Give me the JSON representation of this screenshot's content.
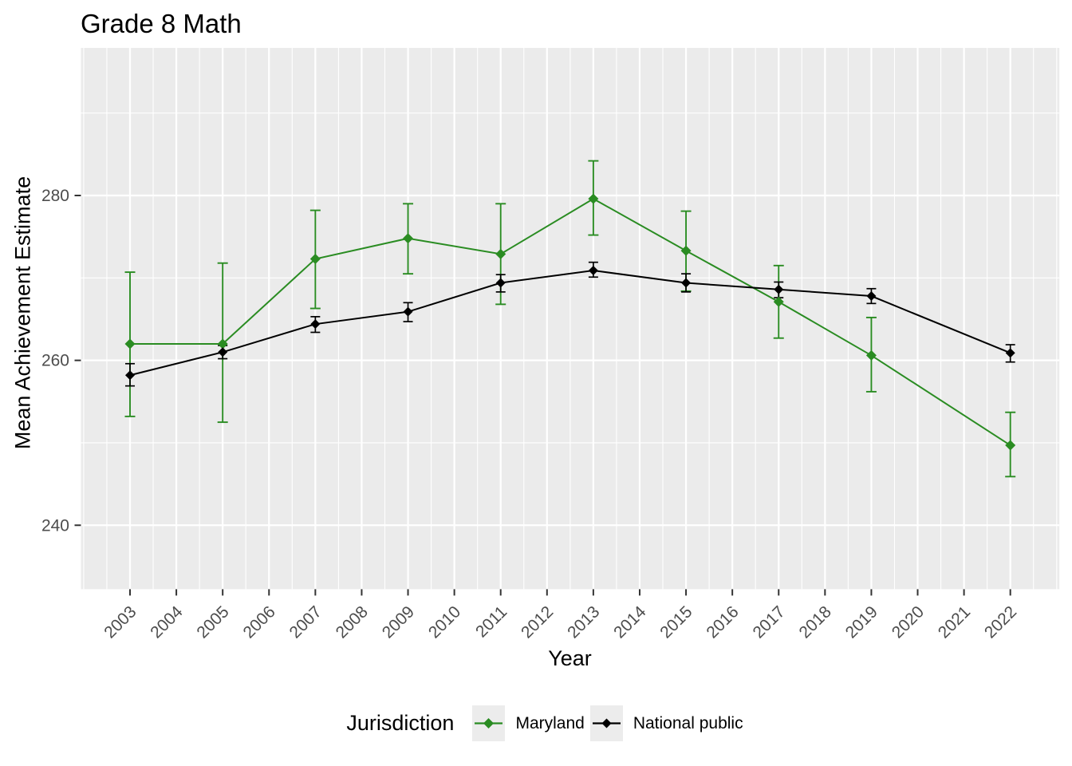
{
  "title": "Grade 8 Math",
  "colors": {
    "maryland": "#2A8C22",
    "national_public": "#000000",
    "panel_bg": "#EBEBEB",
    "grid": "#FFFFFF",
    "axis_text": "#4D4D4D",
    "tick_mark": "#333333",
    "legend_key_bg": "#ECECEC"
  },
  "chart_data": {
    "type": "line",
    "title": "Grade 8 Math",
    "xlabel": "Year",
    "ylabel": "Mean Achievement Estimate",
    "x_ticks": [
      2003,
      2004,
      2005,
      2006,
      2007,
      2008,
      2009,
      2010,
      2011,
      2012,
      2013,
      2014,
      2015,
      2016,
      2017,
      2018,
      2019,
      2020,
      2021,
      2022
    ],
    "y_ticks": [
      240,
      260,
      280
    ],
    "y_minor_ticks": [
      250,
      270,
      290
    ],
    "xlim": [
      2001.9,
      2023.1
    ],
    "ylim": [
      232.3,
      297.9
    ],
    "grid": true,
    "legend": {
      "title": "Jurisdiction",
      "position": "bottom"
    },
    "error_bars": true,
    "marker": "diamond",
    "series": [
      {
        "name": "Maryland",
        "color": "#2A8C22",
        "x": [
          2003,
          2005,
          2007,
          2009,
          2011,
          2013,
          2015,
          2017,
          2019,
          2022
        ],
        "y": [
          262.0,
          262.0,
          272.3,
          274.8,
          272.9,
          279.6,
          273.3,
          267.1,
          260.6,
          249.7
        ],
        "lower": [
          253.2,
          252.5,
          266.3,
          270.5,
          266.8,
          275.2,
          268.4,
          262.7,
          256.2,
          245.9
        ],
        "upper": [
          270.7,
          271.8,
          278.2,
          279.0,
          279.0,
          284.2,
          278.1,
          271.5,
          265.2,
          253.7
        ]
      },
      {
        "name": "National public",
        "color": "#000000",
        "x": [
          2003,
          2005,
          2007,
          2009,
          2011,
          2013,
          2015,
          2017,
          2019,
          2022
        ],
        "y": [
          258.2,
          261.0,
          264.4,
          265.9,
          269.4,
          270.9,
          269.4,
          268.6,
          267.8,
          260.9
        ],
        "lower": [
          256.9,
          260.2,
          263.4,
          264.7,
          268.3,
          270.1,
          268.3,
          267.6,
          266.9,
          259.8
        ],
        "upper": [
          259.6,
          261.8,
          265.3,
          267.0,
          270.4,
          271.9,
          270.5,
          269.5,
          268.7,
          261.9
        ]
      }
    ]
  }
}
